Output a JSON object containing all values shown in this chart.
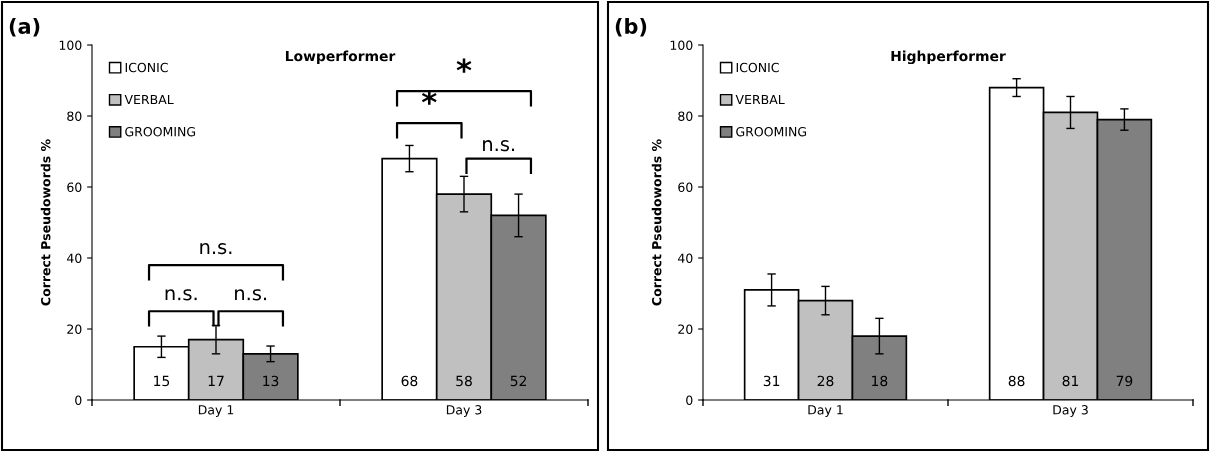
{
  "chart_data": [
    {
      "type": "bar",
      "title": "Lowperformer",
      "ylabel": "Correct Pseudowords %",
      "categories": [
        "Day 1",
        "Day 3"
      ],
      "series": [
        {
          "name": "ICONIC",
          "color": "#ffffff",
          "values": [
            15,
            68
          ],
          "errors": [
            3,
            3.7
          ]
        },
        {
          "name": "VERBAL",
          "color": "#c0c0c0",
          "values": [
            17,
            58
          ],
          "errors": [
            4,
            5
          ]
        },
        {
          "name": "GROOMING",
          "color": "#808080",
          "values": [
            13,
            52
          ],
          "errors": [
            2.2,
            6
          ]
        }
      ],
      "ylim": [
        0,
        100
      ],
      "yticks": [
        0,
        20,
        40,
        60,
        80,
        100
      ],
      "data_labels": true,
      "legend": "top left",
      "annotations": [
        "(a)",
        "n.s.",
        "n.s.",
        "n.s.",
        "*",
        "*",
        "n.s."
      ]
    },
    {
      "type": "bar",
      "title": "Highperformer",
      "ylabel": "Correct Pseudowords %",
      "categories": [
        "Day 1",
        "Day 3"
      ],
      "series": [
        {
          "name": "ICONIC",
          "color": "#ffffff",
          "values": [
            31,
            88
          ],
          "errors": [
            4.5,
            2.5
          ]
        },
        {
          "name": "VERBAL",
          "color": "#c0c0c0",
          "values": [
            28,
            81
          ],
          "errors": [
            4,
            4.5
          ]
        },
        {
          "name": "GROOMING",
          "color": "#808080",
          "values": [
            18,
            79
          ],
          "errors": [
            5,
            3
          ]
        }
      ],
      "ylim": [
        0,
        100
      ],
      "yticks": [
        0,
        20,
        40,
        60,
        80,
        100
      ],
      "data_labels": true,
      "legend": "top left",
      "annotations": [
        "(b)"
      ]
    }
  ]
}
